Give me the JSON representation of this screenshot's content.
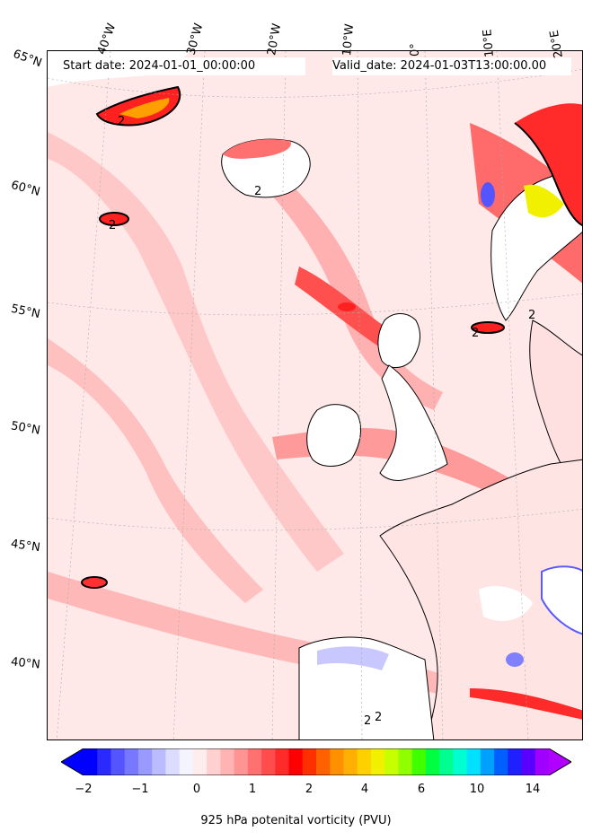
{
  "header": {
    "start_date": "Start date: 2024-01-01_00:00:00",
    "valid_date": "Valid_date: 2024-01-03T13:00:00.00"
  },
  "lon_labels": [
    "40°W",
    "30°W",
    "20°W",
    "10°W",
    "0°",
    "10°E",
    "20°E"
  ],
  "lat_labels": [
    "65°N",
    "60°N",
    "55°N",
    "50°N",
    "45°N",
    "40°N"
  ],
  "contour_label": "2",
  "colorbar": {
    "label": "925 hPa potenital vorticity (PVU)",
    "ticks": [
      "−2",
      "−1",
      "0",
      "1",
      "2",
      "4",
      "6",
      "10",
      "14"
    ],
    "colors": [
      "#0000ff",
      "#2a2aff",
      "#5555ff",
      "#7777ff",
      "#9999ff",
      "#bbbbff",
      "#dcdcff",
      "#f4f4ff",
      "#ffecec",
      "#ffd0d0",
      "#ffb3b3",
      "#ff9494",
      "#ff7070",
      "#ff4d4d",
      "#ff2a2a",
      "#ff0000",
      "#ff3000",
      "#ff6000",
      "#ff9000",
      "#ffb000",
      "#ffd000",
      "#f0f000",
      "#c8ff00",
      "#90ff00",
      "#40ff00",
      "#00ff40",
      "#00ff90",
      "#00ffd0",
      "#00e0ff",
      "#00a0ff",
      "#0060ff",
      "#2020ff",
      "#5a00ff",
      "#a000ff"
    ],
    "min_extend": "#0000ff",
    "max_extend": "#b000ff"
  },
  "map": {
    "background": "#ffe8e8",
    "land": "#ffffff",
    "coast": "#000000"
  }
}
